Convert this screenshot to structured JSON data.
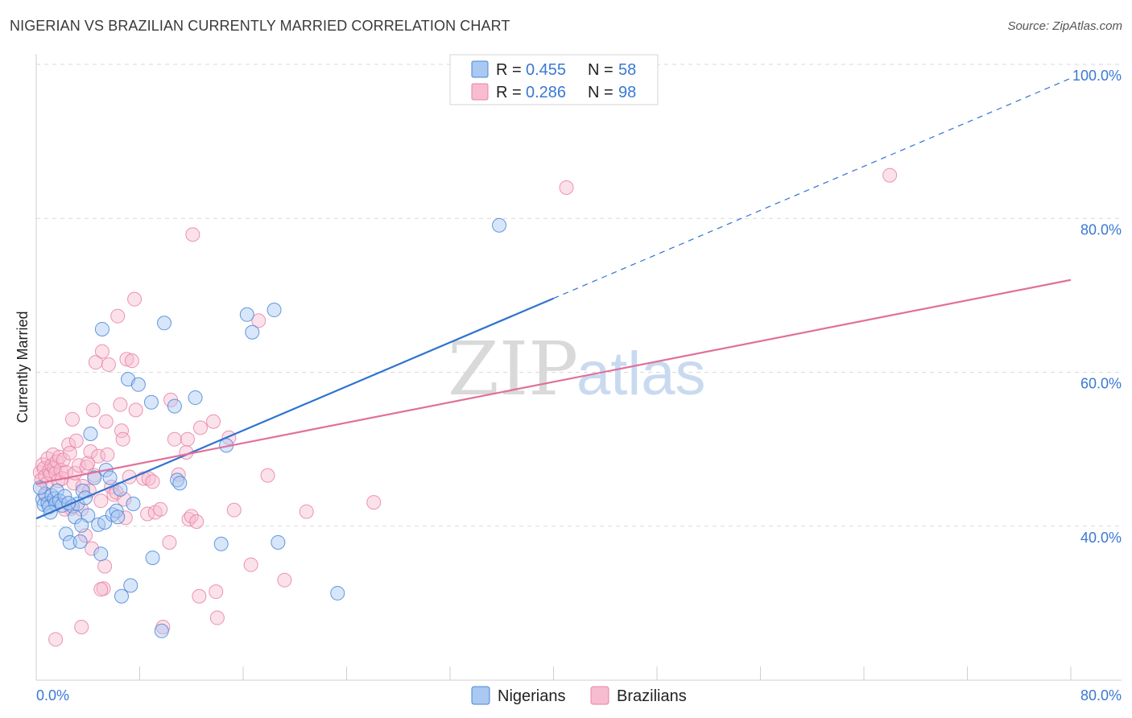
{
  "title": "NIGERIAN VS BRAZILIAN CURRENTLY MARRIED CORRELATION CHART",
  "source": "Source: ZipAtlas.com",
  "watermark": {
    "zip": "ZIP",
    "atlas": "atlas"
  },
  "colors": {
    "nigerian_fill": "#a9c8f2",
    "nigerian_stroke": "#4a86d8",
    "nigerian_line": "#2f73cf",
    "brazilian_fill": "#f7bcd0",
    "brazilian_stroke": "#e883a6",
    "brazilian_line": "#e0709a",
    "grid": "#d9d9d9",
    "tick": "#3a78d4"
  },
  "legend": {
    "rows": [
      {
        "r_label": "R =",
        "r_value": "0.455",
        "n_label": "N =",
        "n_value": "58",
        "series": "nigerian"
      },
      {
        "r_label": "R =",
        "r_value": "0.286",
        "n_label": "N =",
        "n_value": "98",
        "series": "brazilian"
      }
    ]
  },
  "bottom_legend": [
    {
      "label": "Nigerians",
      "series": "nigerian"
    },
    {
      "label": "Brazilians",
      "series": "brazilian"
    }
  ],
  "chart_data": {
    "type": "scatter",
    "title": "NIGERIAN VS BRAZILIAN CURRENTLY MARRIED CORRELATION CHART",
    "xlabel": "",
    "ylabel": "Currently Married",
    "xlim": [
      0,
      80
    ],
    "ylim": [
      20,
      100
    ],
    "x_tick_labels": [
      {
        "value": 0,
        "label": "0.0%"
      },
      {
        "value": 80,
        "label": "80.0%"
      }
    ],
    "y_tick_labels": [
      {
        "value": 40,
        "label": "40.0%"
      },
      {
        "value": 60,
        "label": "60.0%"
      },
      {
        "value": 80,
        "label": "80.0%"
      },
      {
        "value": 100,
        "label": "100.0%"
      }
    ],
    "grid": true,
    "series": [
      {
        "name": "Nigerians",
        "r": 0.455,
        "n": 58,
        "trend": {
          "x0": 0,
          "y0": 41.0,
          "x1": 40,
          "y1": 69.6,
          "dashed_to_x": 80,
          "dashed_to_y": 98.2
        },
        "points": [
          [
            0.5,
            43.5
          ],
          [
            0.6,
            42.8
          ],
          [
            0.7,
            44.2
          ],
          [
            0.9,
            43.0
          ],
          [
            1.0,
            42.5
          ],
          [
            1.2,
            44.0
          ],
          [
            1.4,
            43.6
          ],
          [
            1.5,
            42.9
          ],
          [
            1.6,
            44.6
          ],
          [
            1.8,
            43.3
          ],
          [
            2.0,
            42.7
          ],
          [
            2.2,
            43.9
          ],
          [
            2.3,
            39.0
          ],
          [
            2.6,
            37.9
          ],
          [
            2.8,
            42.6
          ],
          [
            3.0,
            41.2
          ],
          [
            3.2,
            42.9
          ],
          [
            3.4,
            38.0
          ],
          [
            3.6,
            44.6
          ],
          [
            3.8,
            43.7
          ],
          [
            4.0,
            41.4
          ],
          [
            4.2,
            52.0
          ],
          [
            4.5,
            46.3
          ],
          [
            4.8,
            40.2
          ],
          [
            5.0,
            36.4
          ],
          [
            5.1,
            65.6
          ],
          [
            5.3,
            40.5
          ],
          [
            5.4,
            47.3
          ],
          [
            5.7,
            46.3
          ],
          [
            5.9,
            41.5
          ],
          [
            6.2,
            42.0
          ],
          [
            6.5,
            44.8
          ],
          [
            6.3,
            41.2
          ],
          [
            6.6,
            30.9
          ],
          [
            7.1,
            59.1
          ],
          [
            7.3,
            32.3
          ],
          [
            7.5,
            42.9
          ],
          [
            7.9,
            58.4
          ],
          [
            8.9,
            56.1
          ],
          [
            9.0,
            35.9
          ],
          [
            9.7,
            26.4
          ],
          [
            9.9,
            66.4
          ],
          [
            10.7,
            55.6
          ],
          [
            10.9,
            46.0
          ],
          [
            11.1,
            45.6
          ],
          [
            12.3,
            56.7
          ],
          [
            14.3,
            37.7
          ],
          [
            14.7,
            50.5
          ],
          [
            16.3,
            67.5
          ],
          [
            16.7,
            65.2
          ],
          [
            18.4,
            68.1
          ],
          [
            18.7,
            37.9
          ],
          [
            23.3,
            31.3
          ],
          [
            35.8,
            79.1
          ],
          [
            0.3,
            45.0
          ],
          [
            1.1,
            41.8
          ],
          [
            2.5,
            43.0
          ],
          [
            3.5,
            40.1
          ]
        ]
      },
      {
        "name": "Brazilians",
        "r": 0.286,
        "n": 98,
        "trend": {
          "x0": 0,
          "y0": 45.5,
          "x1": 80,
          "y1": 72.0
        },
        "points": [
          [
            0.3,
            47.0
          ],
          [
            0.4,
            46.0
          ],
          [
            0.5,
            48.0
          ],
          [
            0.6,
            47.5
          ],
          [
            0.7,
            46.5
          ],
          [
            0.8,
            45.5
          ],
          [
            0.9,
            48.8
          ],
          [
            1.0,
            47.2
          ],
          [
            1.1,
            46.8
          ],
          [
            1.2,
            47.9
          ],
          [
            1.3,
            49.3
          ],
          [
            1.4,
            47.6
          ],
          [
            1.5,
            46.9
          ],
          [
            1.6,
            48.4
          ],
          [
            1.7,
            45.9
          ],
          [
            1.8,
            49.0
          ],
          [
            1.9,
            47.3
          ],
          [
            2.0,
            46.2
          ],
          [
            2.1,
            48.6
          ],
          [
            2.2,
            42.2
          ],
          [
            2.3,
            47.0
          ],
          [
            2.5,
            50.6
          ],
          [
            2.6,
            49.5
          ],
          [
            2.8,
            53.9
          ],
          [
            2.9,
            45.6
          ],
          [
            3.0,
            46.9
          ],
          [
            3.1,
            51.1
          ],
          [
            3.3,
            47.9
          ],
          [
            3.5,
            42.2
          ],
          [
            3.6,
            45.2
          ],
          [
            3.8,
            38.8
          ],
          [
            3.9,
            47.7
          ],
          [
            4.0,
            48.2
          ],
          [
            4.2,
            49.7
          ],
          [
            4.3,
            37.1
          ],
          [
            4.4,
            55.1
          ],
          [
            4.5,
            46.6
          ],
          [
            4.6,
            61.3
          ],
          [
            4.8,
            49.1
          ],
          [
            5.0,
            43.3
          ],
          [
            5.1,
            62.7
          ],
          [
            5.2,
            31.9
          ],
          [
            5.3,
            34.8
          ],
          [
            5.4,
            53.6
          ],
          [
            5.5,
            49.3
          ],
          [
            5.6,
            61.0
          ],
          [
            5.8,
            45.1
          ],
          [
            6.0,
            44.1
          ],
          [
            6.2,
            44.4
          ],
          [
            6.3,
            67.3
          ],
          [
            6.5,
            55.8
          ],
          [
            6.6,
            52.4
          ],
          [
            6.7,
            51.3
          ],
          [
            6.9,
            41.1
          ],
          [
            7.0,
            61.7
          ],
          [
            7.2,
            46.4
          ],
          [
            7.4,
            61.5
          ],
          [
            7.6,
            69.5
          ],
          [
            7.7,
            55.1
          ],
          [
            8.3,
            46.2
          ],
          [
            8.6,
            41.6
          ],
          [
            8.7,
            46.2
          ],
          [
            9.2,
            41.8
          ],
          [
            9.6,
            42.2
          ],
          [
            10.3,
            37.9
          ],
          [
            10.4,
            56.4
          ],
          [
            10.7,
            51.3
          ],
          [
            11.6,
            49.6
          ],
          [
            11.7,
            51.3
          ],
          [
            11.8,
            40.9
          ],
          [
            12.0,
            41.3
          ],
          [
            12.1,
            77.9
          ],
          [
            12.4,
            40.6
          ],
          [
            12.7,
            52.8
          ],
          [
            13.7,
            53.6
          ],
          [
            14.0,
            28.1
          ],
          [
            14.9,
            51.5
          ],
          [
            15.3,
            42.1
          ],
          [
            16.6,
            35.0
          ],
          [
            17.2,
            66.7
          ],
          [
            17.9,
            46.6
          ],
          [
            19.2,
            33.0
          ],
          [
            20.9,
            41.9
          ],
          [
            26.1,
            43.1
          ],
          [
            41.0,
            84.0
          ],
          [
            66.0,
            85.6
          ],
          [
            1.5,
            25.3
          ],
          [
            5.0,
            31.8
          ],
          [
            9.8,
            26.9
          ],
          [
            3.5,
            26.9
          ],
          [
            12.6,
            30.9
          ],
          [
            13.9,
            31.5
          ],
          [
            0.7,
            44.0
          ],
          [
            2.7,
            42.3
          ],
          [
            4.1,
            44.6
          ],
          [
            6.8,
            43.5
          ],
          [
            9.0,
            45.8
          ],
          [
            11.0,
            46.7
          ]
        ]
      }
    ]
  }
}
